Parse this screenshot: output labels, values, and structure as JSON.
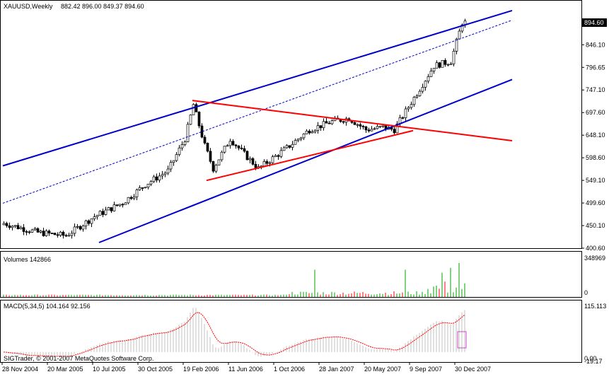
{
  "header": {
    "symbol": "XAUUSD,Weekly",
    "ohlc": "882.42 896.00 849.37 894.60"
  },
  "colors": {
    "background": "#ffffff",
    "frame": "#000000",
    "candle": "#000000",
    "channel": "#0000cc",
    "triangle": "#ff0000",
    "volume_up": "#00a000",
    "volume_down": "#ff0000",
    "macd_hist": "#c0c0c0",
    "macd_signal": "#ff0000",
    "marker": "#cc44cc",
    "price_marker_bg": "#000000",
    "price_marker_text": "#ffffff"
  },
  "price_panel": {
    "y_ticks": [
      "894.60",
      "846.10",
      "796.65",
      "747.10",
      "697.60",
      "648.10",
      "598.60",
      "549.10",
      "499.60",
      "450.10",
      "400.60"
    ],
    "current_price": "894.60"
  },
  "volume_panel": {
    "label": "Volumes 142866",
    "y_ticks": [
      "348969",
      "0"
    ]
  },
  "macd_panel": {
    "label": "MACD(5,34,5) 104.164 92.156",
    "y_ticks": [
      "115.113",
      "0.00",
      "-19.17"
    ],
    "copyright": "SIGTrader, © 2001-2007 MetaQuotes Software Corp."
  },
  "x_axis": {
    "labels": [
      "28 Nov 2004",
      "20 Mar 2005",
      "10 Jul 2005",
      "30 Oct 2005",
      "19 Feb 2006",
      "11 Jun 2006",
      "1 Oct 2006",
      "28 Jan 2007",
      "20 May 2007",
      "9 Sep 2007",
      "30 Dec 2007"
    ]
  },
  "chart_data": {
    "type": "candlestick",
    "title": "XAUUSD,Weekly",
    "ylim": [
      400.6,
      922
    ],
    "bars": 164,
    "key_points": [
      {
        "bar": 0,
        "close": 455
      },
      {
        "bar": 12,
        "close": 435
      },
      {
        "bar": 22,
        "close": 428
      },
      {
        "bar": 32,
        "close": 470
      },
      {
        "bar": 42,
        "close": 500
      },
      {
        "bar": 50,
        "close": 540
      },
      {
        "bar": 58,
        "close": 570
      },
      {
        "bar": 64,
        "close": 640
      },
      {
        "bar": 67,
        "close": 715
      },
      {
        "bar": 71,
        "close": 625
      },
      {
        "bar": 74,
        "close": 575
      },
      {
        "bar": 80,
        "close": 640
      },
      {
        "bar": 86,
        "close": 600
      },
      {
        "bar": 90,
        "close": 575
      },
      {
        "bar": 100,
        "close": 620
      },
      {
        "bar": 108,
        "close": 660
      },
      {
        "bar": 116,
        "close": 678
      },
      {
        "bar": 122,
        "close": 685
      },
      {
        "bar": 128,
        "close": 660
      },
      {
        "bar": 134,
        "close": 665
      },
      {
        "bar": 138,
        "close": 660
      },
      {
        "bar": 142,
        "close": 700
      },
      {
        "bar": 148,
        "close": 760
      },
      {
        "bar": 152,
        "close": 800
      },
      {
        "bar": 158,
        "close": 810
      },
      {
        "bar": 162,
        "close": 895
      },
      {
        "bar": 163,
        "close": 894.6
      }
    ],
    "volume_spikes": [
      {
        "bar": 110,
        "value": 280000
      },
      {
        "bar": 142,
        "value": 280000
      },
      {
        "bar": 155,
        "value": 250000
      },
      {
        "bar": 158,
        "value": 300000
      },
      {
        "bar": 161,
        "value": 348969
      }
    ],
    "lines": {
      "channel_upper": [
        [
          0,
          581
        ],
        [
          180,
          921
        ]
      ],
      "channel_mid": [
        [
          0,
          499
        ],
        [
          180,
          900
        ]
      ],
      "channel_lower": [
        [
          34,
          413
        ],
        [
          180,
          770
        ]
      ],
      "triangle_top": [
        [
          67,
          724
        ],
        [
          180,
          636
        ]
      ],
      "triangle_bottom": [
        [
          72,
          549
        ],
        [
          145,
          658
        ]
      ]
    },
    "macd_signal_peak": 115.113,
    "macd_min": -19.17
  }
}
